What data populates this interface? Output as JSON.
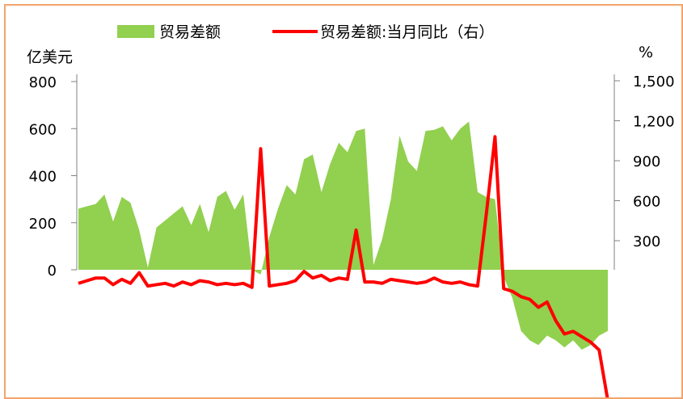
{
  "chart_data": {
    "type": "area",
    "title": "",
    "legend": {
      "placement": "top",
      "entries": [
        "贸易差额",
        "贸易差额:当月同比（右）"
      ]
    },
    "y_left": {
      "label": "亿美元",
      "range": [
        -200,
        800
      ],
      "ticks": [
        "800",
        "600",
        "400",
        "200",
        "0"
      ],
      "visible_ticks": [
        800,
        600,
        400,
        200,
        0
      ]
    },
    "y_right": {
      "label": "%",
      "range": [
        -900,
        1500
      ],
      "ticks": [
        "1,500",
        "1,200",
        "900",
        "600",
        "300"
      ],
      "visible_ticks": [
        1500,
        1200,
        900,
        600,
        300
      ]
    },
    "x_count": 62,
    "series": [
      {
        "name": "贸易差额",
        "kind": "area",
        "axis": "left",
        "color": "#92d050",
        "values": [
          260,
          270,
          280,
          320,
          205,
          310,
          285,
          170,
          10,
          180,
          210,
          240,
          270,
          190,
          280,
          160,
          310,
          335,
          255,
          320,
          0,
          -20,
          140,
          260,
          360,
          320,
          470,
          490,
          330,
          450,
          540,
          500,
          590,
          600,
          20,
          130,
          300,
          570,
          460,
          420,
          590,
          595,
          610,
          550,
          600,
          630,
          330,
          310,
          300,
          -30,
          -120,
          -260,
          -300,
          -320,
          -280,
          -300,
          -330,
          -300,
          -340,
          -320,
          -280,
          -260
        ]
      },
      {
        "name": "贸易差额:当月同比（右）",
        "kind": "line",
        "axis": "right",
        "color": "#ff0000",
        "values": [
          -20,
          0,
          20,
          20,
          -30,
          10,
          -20,
          60,
          -40,
          -30,
          -20,
          -40,
          -10,
          -30,
          0,
          -10,
          -30,
          -20,
          -30,
          -20,
          -50,
          990,
          -40,
          -30,
          -20,
          0,
          70,
          20,
          40,
          0,
          20,
          10,
          380,
          -10,
          -10,
          -20,
          10,
          0,
          -10,
          -20,
          -10,
          20,
          -10,
          -20,
          -10,
          -30,
          -40,
          500,
          1080,
          -60,
          -80,
          -120,
          -140,
          -200,
          -160,
          -300,
          -400,
          -380,
          -420,
          -460,
          -520,
          -900
        ]
      }
    ],
    "grid": false
  }
}
